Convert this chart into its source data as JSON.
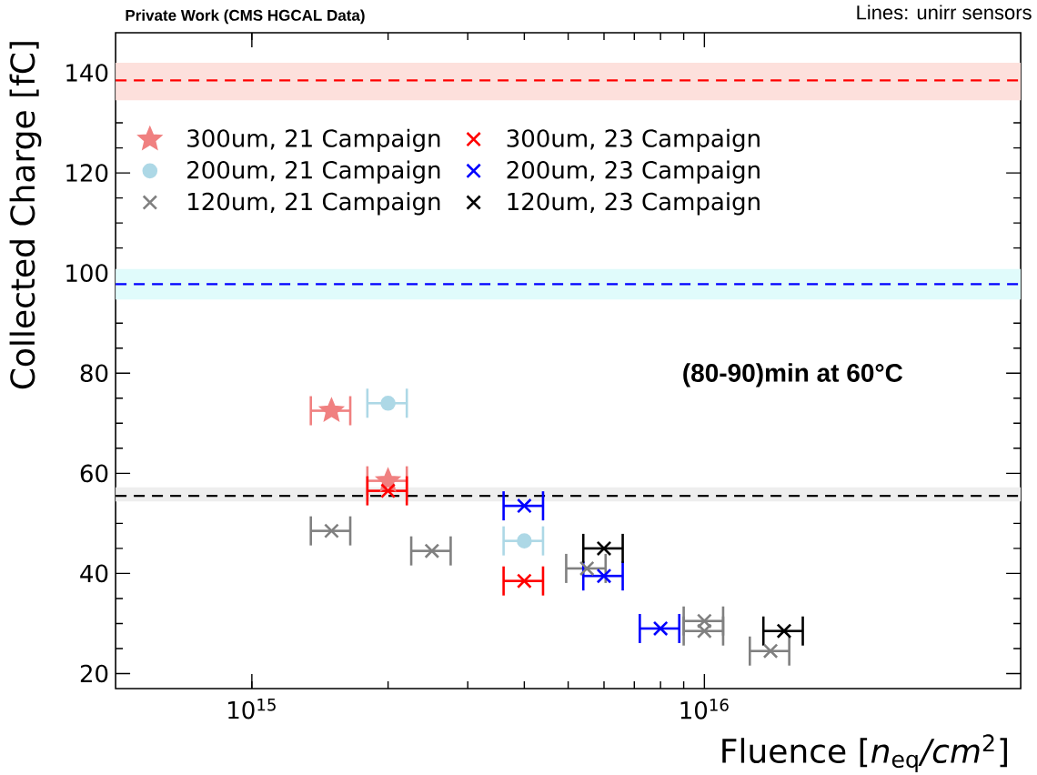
{
  "chart_data": {
    "type": "scatter",
    "title": "Private Work (CMS HGCAL Data)",
    "subtitle": "Lines: unirr sensors",
    "xlabel": "Fluence [*n*$_{eq}$*/cm*$^{2}$]",
    "ylabel": "Collected Charge [fC]",
    "annotations": [
      "(80-90)min at 60°C"
    ],
    "log": "x",
    "legend": "top left",
    "line_style": "none",
    "xlim": [
      500000000000000.0,
      5e+16
    ],
    "xticks": [
      {
        "value": 1000000000000000.0,
        "label": "10$^{15}$"
      },
      {
        "value": 1e+16,
        "label": "10$^{16}$"
      }
    ],
    "ylim": [
      17,
      148
    ],
    "yticks": [
      20,
      40,
      60,
      80,
      100,
      120,
      140
    ],
    "series": [
      {
        "name": "300um, 21 Campaign",
        "color": "#f08080",
        "marker": "star",
        "x": [
          1500000000000000.0,
          2000000000000000.0
        ],
        "values": [
          72.5,
          58.5
        ],
        "xerrors": [
          150000000000000.0,
          200000000000000.0
        ]
      },
      {
        "name": "200um, 21 Campaign",
        "color": "#add8e6",
        "marker": "circle",
        "x": [
          2000000000000000.0,
          4000000000000000.0
        ],
        "values": [
          74,
          46.5
        ],
        "xerrors": [
          200000000000000.0,
          400000000000000.0
        ]
      },
      {
        "name": "120um, 21 Campaign",
        "color": "#808080",
        "marker": "cross",
        "x": [
          1500000000000000.0,
          2500000000000000.0,
          5500000000000000.0,
          1e+16,
          1e+16,
          1.4e+16
        ],
        "values": [
          48.5,
          44.5,
          41,
          30.5,
          28.5,
          24.5
        ],
        "xerrors": [
          150000000000000.0,
          250000000000000.0,
          550000000000000.0,
          1000000000000000.0,
          1000000000000000.0,
          1400000000000000.0
        ]
      },
      {
        "name": "300um, 23 Campaign",
        "color": "#ff0000",
        "marker": "cross",
        "x": [
          2000000000000000.0,
          4000000000000000.0
        ],
        "values": [
          56.5,
          38.5
        ],
        "xerrors": [
          200000000000000.0,
          400000000000000.0
        ]
      },
      {
        "name": "200um, 23 Campaign",
        "color": "#0000ff",
        "marker": "cross",
        "x": [
          4000000000000000.0,
          6000000000000000.0,
          8000000000000000.0
        ],
        "values": [
          53.5,
          39.5,
          29
        ],
        "xerrors": [
          400000000000000.0,
          600000000000000.0,
          800000000000000.0
        ]
      },
      {
        "name": "120um, 23 Campaign",
        "color": "#000000",
        "marker": "cross",
        "x": [
          6000000000000000.0,
          1.5e+16
        ],
        "values": [
          45,
          28.5
        ],
        "xerrors": [
          600000000000000.0,
          1500000000000000.0
        ]
      }
    ],
    "ref_lines": [
      {
        "axis": "y",
        "value": 138.5,
        "color": "#ff0000",
        "line_style": "dashed"
      },
      {
        "axis": "y",
        "value": 97.8,
        "color": "#0000ff",
        "line_style": "dashed"
      },
      {
        "axis": "y",
        "value": 55.5,
        "color": "#000000",
        "line_style": "dashed"
      }
    ],
    "bands": [
      {
        "axis": "y",
        "from": 134.5,
        "to": 142,
        "color": "#fde0dc"
      },
      {
        "axis": "y",
        "from": 94.7,
        "to": 100.8,
        "color": "#e0fbfb"
      },
      {
        "axis": "y",
        "from": 54.4,
        "to": 57.2,
        "color": "#eeeeee"
      }
    ]
  }
}
